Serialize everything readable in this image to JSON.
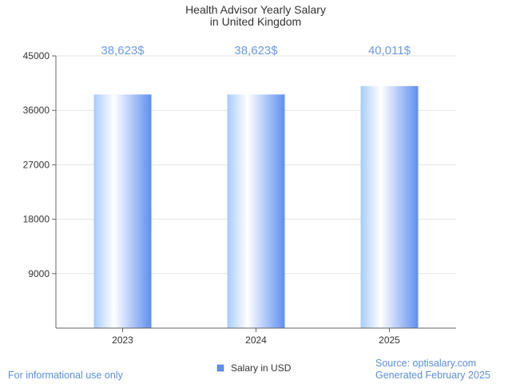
{
  "chart_data": {
    "type": "bar",
    "title_lines": [
      "Health Advisor Yearly Salary",
      "in United Kingdom"
    ],
    "categories": [
      "2023",
      "2024",
      "2025"
    ],
    "series": [
      {
        "name": "Salary in USD",
        "values": [
          38623,
          38623,
          40011
        ]
      }
    ],
    "data_labels": [
      "38,623$",
      "38,623$",
      "40,011$"
    ],
    "ylim": [
      0,
      45000
    ],
    "yticks": [
      9000,
      18000,
      27000,
      36000,
      45000
    ],
    "grid": true,
    "legend_position": "bottom-center",
    "colors": {
      "bar_light": "#ffffff",
      "bar_mid": "#a8ccfa",
      "bar_dark": "#5e8ff0",
      "label": "#6a9be0"
    }
  },
  "footer": {
    "disclaimer": "For informational use only",
    "source": "Source: optisalary.com",
    "generated": "Generated February 2025"
  }
}
